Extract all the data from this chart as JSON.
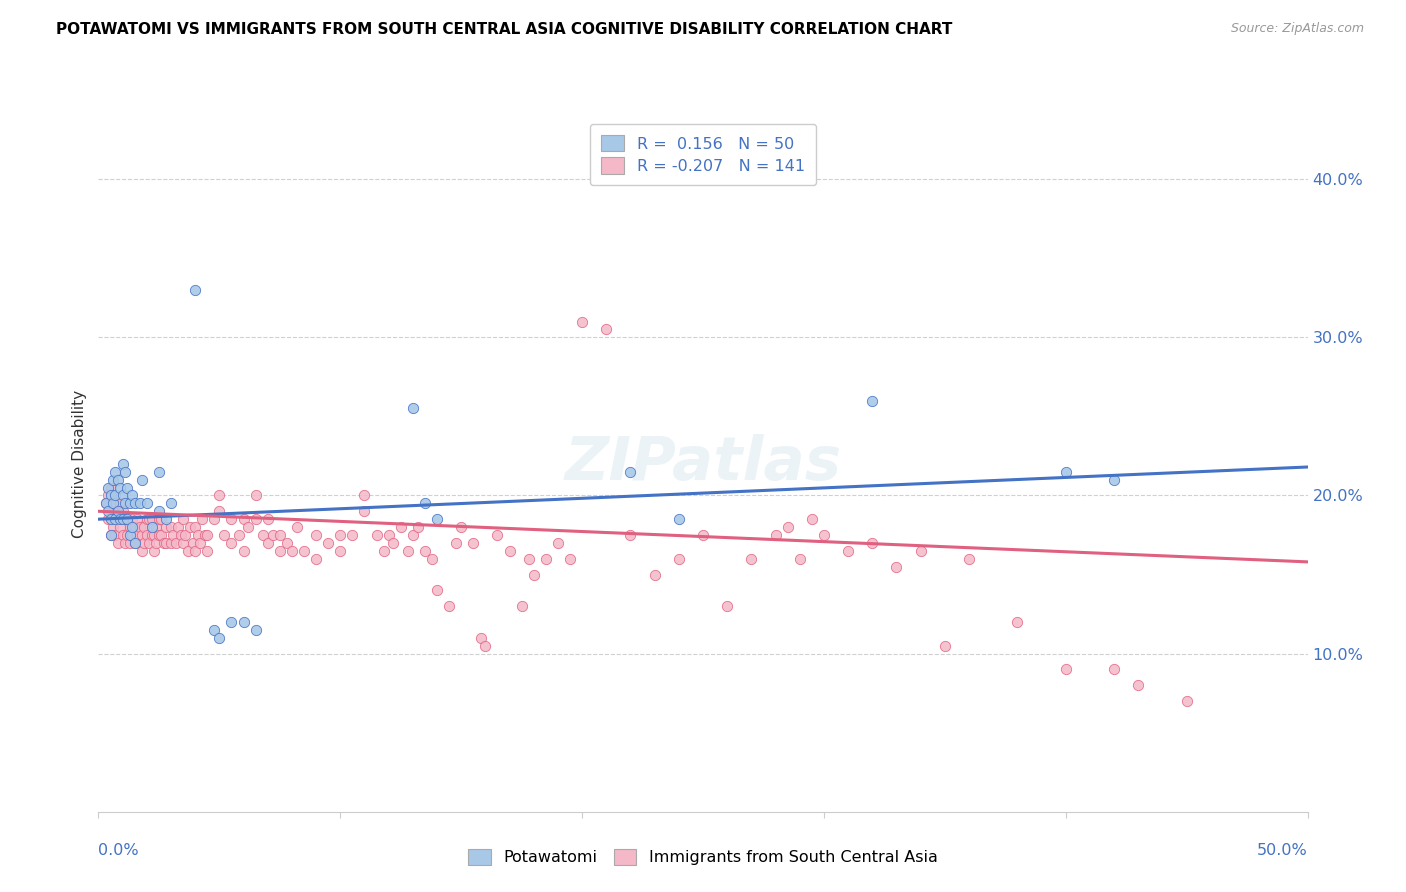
{
  "title": "POTAWATOMI VS IMMIGRANTS FROM SOUTH CENTRAL ASIA COGNITIVE DISABILITY CORRELATION CHART",
  "source": "Source: ZipAtlas.com",
  "ylabel": "Cognitive Disability",
  "color_blue": "#a8c8e8",
  "color_pink": "#f4b8c8",
  "color_blue_line": "#4472c4",
  "color_pink_line": "#e06080",
  "color_axis_labels": "#4472c4",
  "watermark": "ZIPatlas",
  "xlim": [
    0.0,
    0.5
  ],
  "ylim": [
    0.0,
    0.44
  ],
  "ytick_vals": [
    0.1,
    0.2,
    0.3,
    0.4
  ],
  "ytick_labels": [
    "10.0%",
    "20.0%",
    "30.0%",
    "40.0%"
  ],
  "xtick_left": "0.0%",
  "xtick_right": "50.0%",
  "blue_scatter": [
    [
      0.003,
      0.195
    ],
    [
      0.004,
      0.205
    ],
    [
      0.004,
      0.19
    ],
    [
      0.005,
      0.2
    ],
    [
      0.005,
      0.185
    ],
    [
      0.005,
      0.175
    ],
    [
      0.006,
      0.21
    ],
    [
      0.006,
      0.195
    ],
    [
      0.007,
      0.215
    ],
    [
      0.007,
      0.2
    ],
    [
      0.007,
      0.185
    ],
    [
      0.008,
      0.21
    ],
    [
      0.008,
      0.19
    ],
    [
      0.009,
      0.205
    ],
    [
      0.009,
      0.185
    ],
    [
      0.01,
      0.22
    ],
    [
      0.01,
      0.2
    ],
    [
      0.01,
      0.185
    ],
    [
      0.011,
      0.215
    ],
    [
      0.011,
      0.195
    ],
    [
      0.012,
      0.205
    ],
    [
      0.012,
      0.185
    ],
    [
      0.013,
      0.195
    ],
    [
      0.013,
      0.175
    ],
    [
      0.014,
      0.2
    ],
    [
      0.014,
      0.18
    ],
    [
      0.015,
      0.195
    ],
    [
      0.015,
      0.17
    ],
    [
      0.017,
      0.195
    ],
    [
      0.018,
      0.21
    ],
    [
      0.02,
      0.195
    ],
    [
      0.022,
      0.18
    ],
    [
      0.025,
      0.215
    ],
    [
      0.025,
      0.19
    ],
    [
      0.028,
      0.185
    ],
    [
      0.03,
      0.195
    ],
    [
      0.04,
      0.33
    ],
    [
      0.048,
      0.115
    ],
    [
      0.05,
      0.11
    ],
    [
      0.055,
      0.12
    ],
    [
      0.06,
      0.12
    ],
    [
      0.065,
      0.115
    ],
    [
      0.13,
      0.255
    ],
    [
      0.135,
      0.195
    ],
    [
      0.14,
      0.185
    ],
    [
      0.22,
      0.215
    ],
    [
      0.24,
      0.185
    ],
    [
      0.32,
      0.26
    ],
    [
      0.4,
      0.215
    ],
    [
      0.42,
      0.21
    ]
  ],
  "pink_scatter": [
    [
      0.003,
      0.195
    ],
    [
      0.004,
      0.2
    ],
    [
      0.004,
      0.185
    ],
    [
      0.005,
      0.175
    ],
    [
      0.005,
      0.205
    ],
    [
      0.006,
      0.19
    ],
    [
      0.006,
      0.18
    ],
    [
      0.007,
      0.195
    ],
    [
      0.007,
      0.175
    ],
    [
      0.008,
      0.185
    ],
    [
      0.008,
      0.17
    ],
    [
      0.009,
      0.195
    ],
    [
      0.009,
      0.18
    ],
    [
      0.01,
      0.19
    ],
    [
      0.01,
      0.175
    ],
    [
      0.011,
      0.185
    ],
    [
      0.011,
      0.17
    ],
    [
      0.012,
      0.185
    ],
    [
      0.012,
      0.175
    ],
    [
      0.013,
      0.18
    ],
    [
      0.013,
      0.17
    ],
    [
      0.014,
      0.185
    ],
    [
      0.014,
      0.175
    ],
    [
      0.015,
      0.18
    ],
    [
      0.015,
      0.17
    ],
    [
      0.016,
      0.185
    ],
    [
      0.016,
      0.175
    ],
    [
      0.017,
      0.18
    ],
    [
      0.018,
      0.175
    ],
    [
      0.018,
      0.165
    ],
    [
      0.019,
      0.18
    ],
    [
      0.019,
      0.17
    ],
    [
      0.02,
      0.185
    ],
    [
      0.02,
      0.175
    ],
    [
      0.021,
      0.17
    ],
    [
      0.021,
      0.185
    ],
    [
      0.022,
      0.175
    ],
    [
      0.022,
      0.185
    ],
    [
      0.023,
      0.175
    ],
    [
      0.023,
      0.165
    ],
    [
      0.024,
      0.18
    ],
    [
      0.024,
      0.17
    ],
    [
      0.025,
      0.175
    ],
    [
      0.025,
      0.185
    ],
    [
      0.026,
      0.175
    ],
    [
      0.026,
      0.185
    ],
    [
      0.027,
      0.17
    ],
    [
      0.028,
      0.18
    ],
    [
      0.028,
      0.17
    ],
    [
      0.03,
      0.18
    ],
    [
      0.03,
      0.17
    ],
    [
      0.031,
      0.175
    ],
    [
      0.032,
      0.17
    ],
    [
      0.033,
      0.18
    ],
    [
      0.034,
      0.175
    ],
    [
      0.035,
      0.17
    ],
    [
      0.035,
      0.185
    ],
    [
      0.036,
      0.175
    ],
    [
      0.037,
      0.165
    ],
    [
      0.038,
      0.18
    ],
    [
      0.039,
      0.17
    ],
    [
      0.04,
      0.18
    ],
    [
      0.04,
      0.165
    ],
    [
      0.041,
      0.175
    ],
    [
      0.042,
      0.17
    ],
    [
      0.043,
      0.185
    ],
    [
      0.044,
      0.175
    ],
    [
      0.045,
      0.165
    ],
    [
      0.045,
      0.175
    ],
    [
      0.048,
      0.185
    ],
    [
      0.05,
      0.2
    ],
    [
      0.05,
      0.19
    ],
    [
      0.052,
      0.175
    ],
    [
      0.055,
      0.185
    ],
    [
      0.055,
      0.17
    ],
    [
      0.058,
      0.175
    ],
    [
      0.06,
      0.185
    ],
    [
      0.06,
      0.165
    ],
    [
      0.062,
      0.18
    ],
    [
      0.065,
      0.2
    ],
    [
      0.065,
      0.185
    ],
    [
      0.068,
      0.175
    ],
    [
      0.07,
      0.17
    ],
    [
      0.07,
      0.185
    ],
    [
      0.072,
      0.175
    ],
    [
      0.075,
      0.165
    ],
    [
      0.075,
      0.175
    ],
    [
      0.078,
      0.17
    ],
    [
      0.08,
      0.165
    ],
    [
      0.082,
      0.18
    ],
    [
      0.085,
      0.165
    ],
    [
      0.09,
      0.175
    ],
    [
      0.09,
      0.16
    ],
    [
      0.095,
      0.17
    ],
    [
      0.1,
      0.175
    ],
    [
      0.1,
      0.165
    ],
    [
      0.105,
      0.175
    ],
    [
      0.11,
      0.2
    ],
    [
      0.11,
      0.19
    ],
    [
      0.115,
      0.175
    ],
    [
      0.118,
      0.165
    ],
    [
      0.12,
      0.175
    ],
    [
      0.122,
      0.17
    ],
    [
      0.125,
      0.18
    ],
    [
      0.128,
      0.165
    ],
    [
      0.13,
      0.175
    ],
    [
      0.132,
      0.18
    ],
    [
      0.135,
      0.165
    ],
    [
      0.138,
      0.16
    ],
    [
      0.14,
      0.14
    ],
    [
      0.145,
      0.13
    ],
    [
      0.148,
      0.17
    ],
    [
      0.15,
      0.18
    ],
    [
      0.155,
      0.17
    ],
    [
      0.158,
      0.11
    ],
    [
      0.16,
      0.105
    ],
    [
      0.165,
      0.175
    ],
    [
      0.17,
      0.165
    ],
    [
      0.175,
      0.13
    ],
    [
      0.178,
      0.16
    ],
    [
      0.18,
      0.15
    ],
    [
      0.185,
      0.16
    ],
    [
      0.19,
      0.17
    ],
    [
      0.195,
      0.16
    ],
    [
      0.2,
      0.31
    ],
    [
      0.21,
      0.305
    ],
    [
      0.22,
      0.175
    ],
    [
      0.23,
      0.15
    ],
    [
      0.24,
      0.16
    ],
    [
      0.25,
      0.175
    ],
    [
      0.26,
      0.13
    ],
    [
      0.27,
      0.16
    ],
    [
      0.28,
      0.175
    ],
    [
      0.285,
      0.18
    ],
    [
      0.29,
      0.16
    ],
    [
      0.295,
      0.185
    ],
    [
      0.3,
      0.175
    ],
    [
      0.31,
      0.165
    ],
    [
      0.32,
      0.17
    ],
    [
      0.33,
      0.155
    ],
    [
      0.34,
      0.165
    ],
    [
      0.35,
      0.105
    ],
    [
      0.36,
      0.16
    ],
    [
      0.38,
      0.12
    ],
    [
      0.4,
      0.09
    ],
    [
      0.42,
      0.09
    ],
    [
      0.43,
      0.08
    ],
    [
      0.45,
      0.07
    ]
  ]
}
